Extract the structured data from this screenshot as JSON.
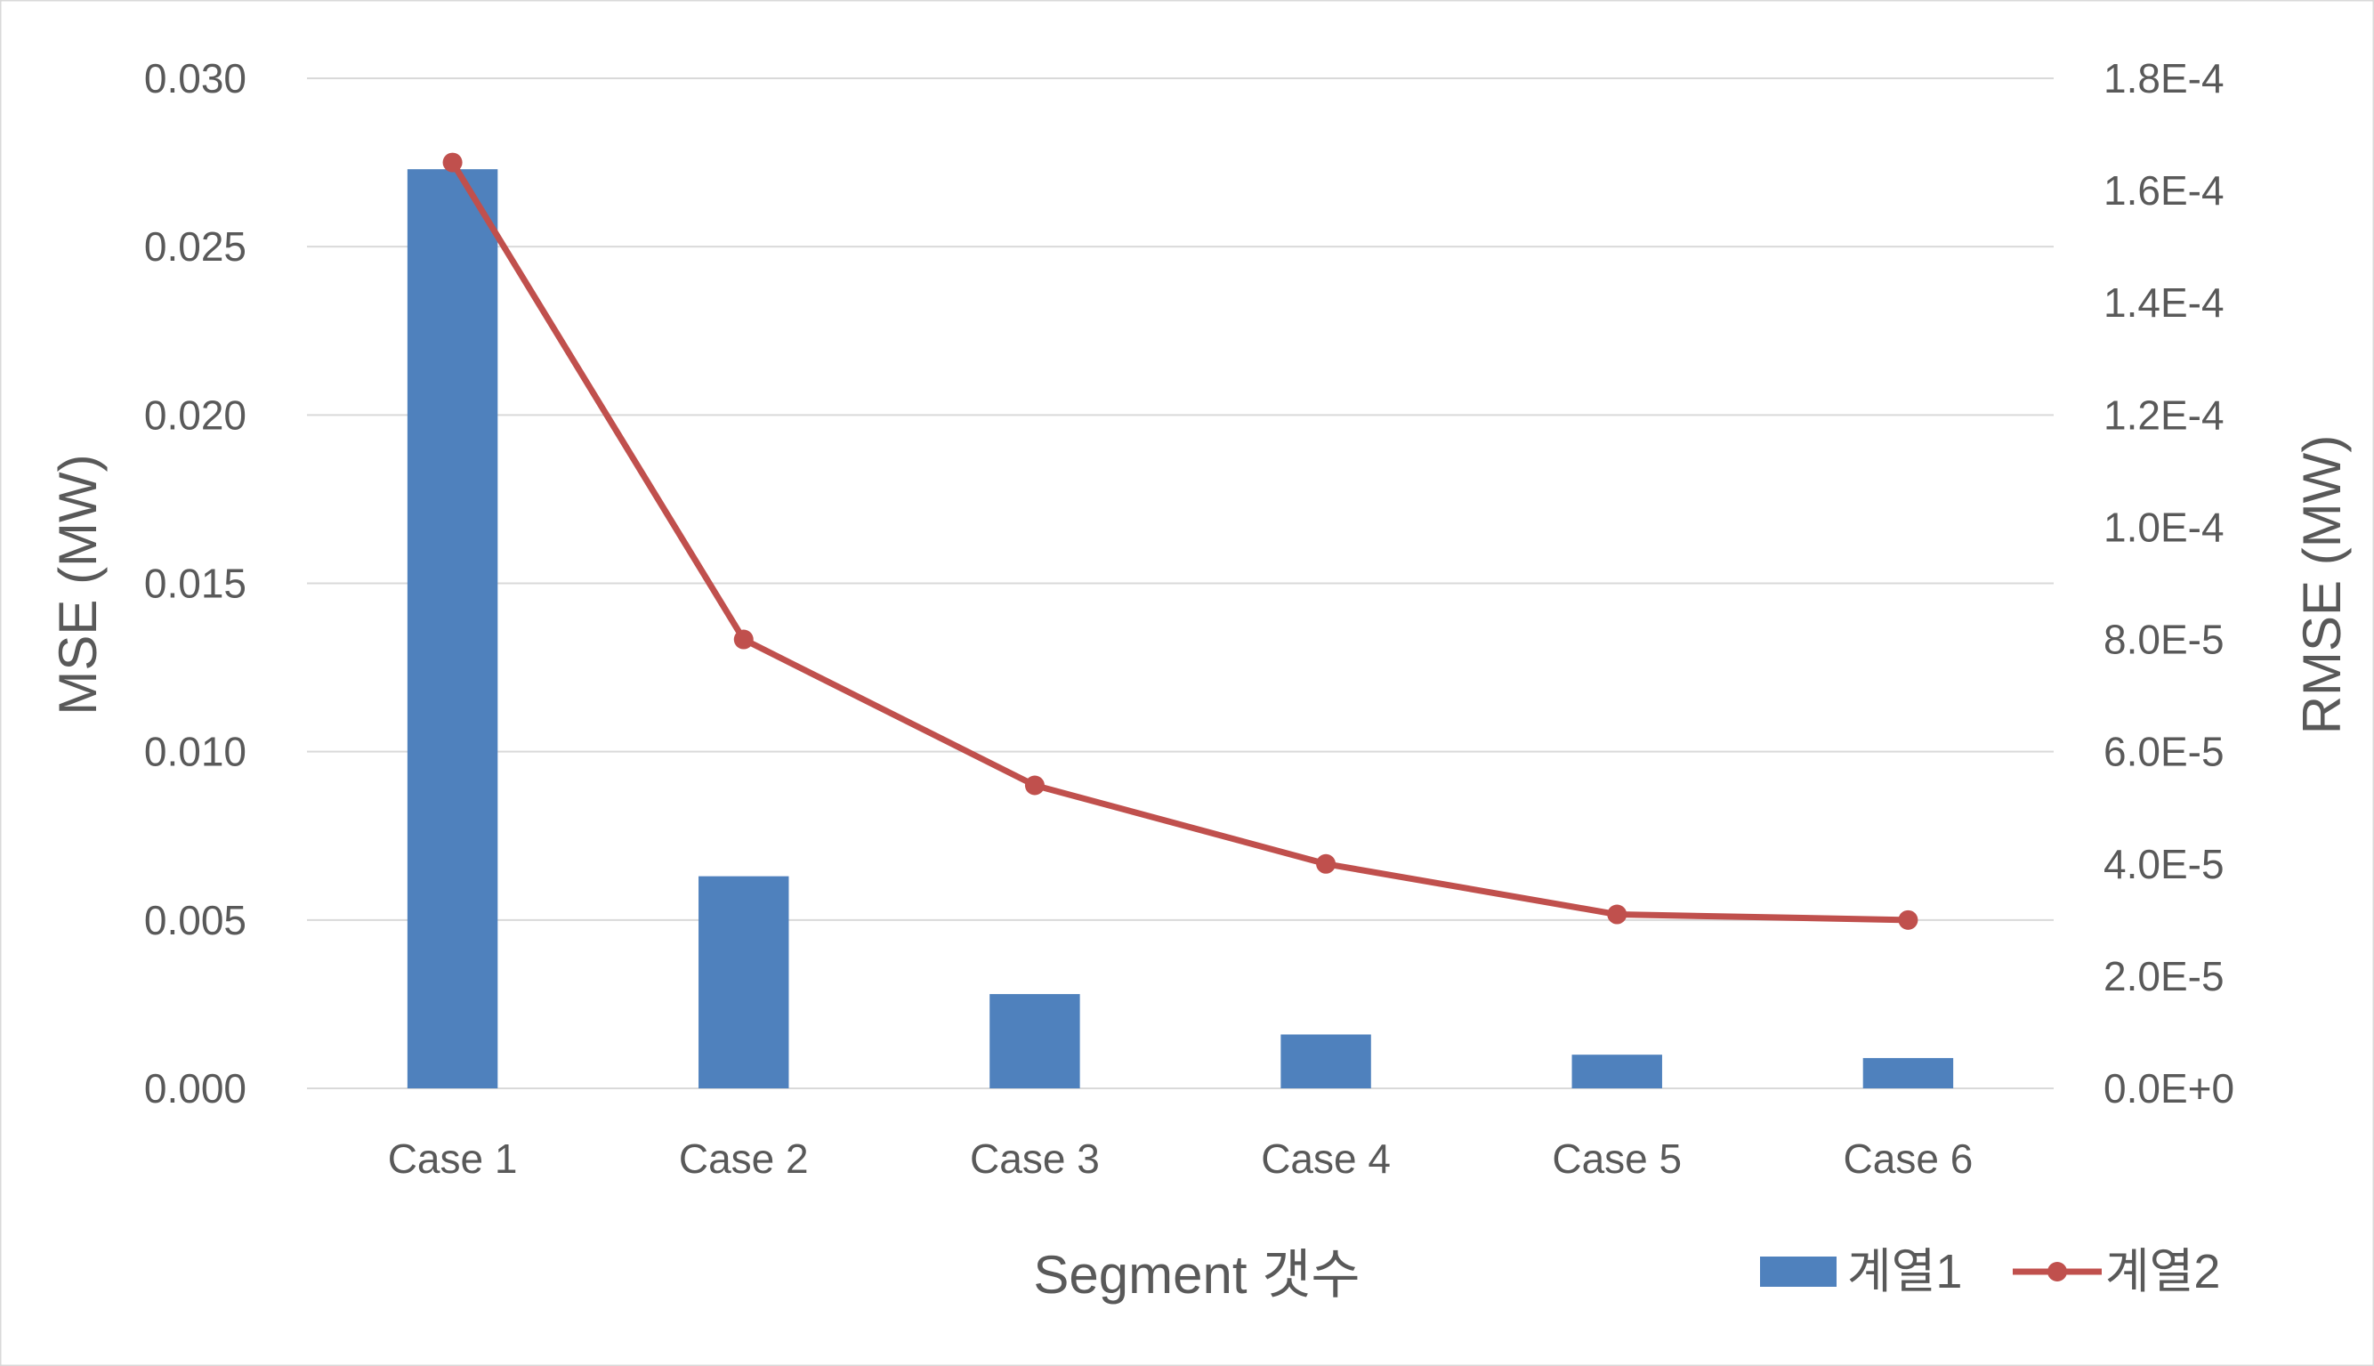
{
  "chart_data": {
    "type": "bar+line",
    "categories": [
      "Case 1",
      "Case 2",
      "Case 3",
      "Case 4",
      "Case 5",
      "Case 6"
    ],
    "series": [
      {
        "name": "계열1",
        "type": "bar",
        "axis": "left",
        "color": "#4F81BD",
        "values": [
          0.0273,
          0.0063,
          0.0028,
          0.0016,
          0.001,
          0.0009
        ]
      },
      {
        "name": "계열2",
        "type": "line",
        "axis": "right",
        "color": "#C0504D",
        "values": [
          0.000165,
          8e-05,
          5.4e-05,
          4e-05,
          3.1e-05,
          3e-05
        ]
      }
    ],
    "xlabel": "Segment 갯수",
    "ylabel": "MSE (MW)",
    "y2label": "RMSE (MW)",
    "ylim": [
      0,
      0.03
    ],
    "y2lim": [
      0,
      0.00018
    ],
    "y_ticks": [
      "0.000",
      "0.005",
      "0.010",
      "0.015",
      "0.020",
      "0.025",
      "0.030"
    ],
    "y2_ticks": [
      "0.0E+0",
      "2.0E-5",
      "4.0E-5",
      "6.0E-5",
      "8.0E-5",
      "1.0E-4",
      "1.2E-4",
      "1.4E-4",
      "1.6E-4",
      "1.8E-4"
    ],
    "grid": true,
    "legend_position": "bottom-right"
  }
}
